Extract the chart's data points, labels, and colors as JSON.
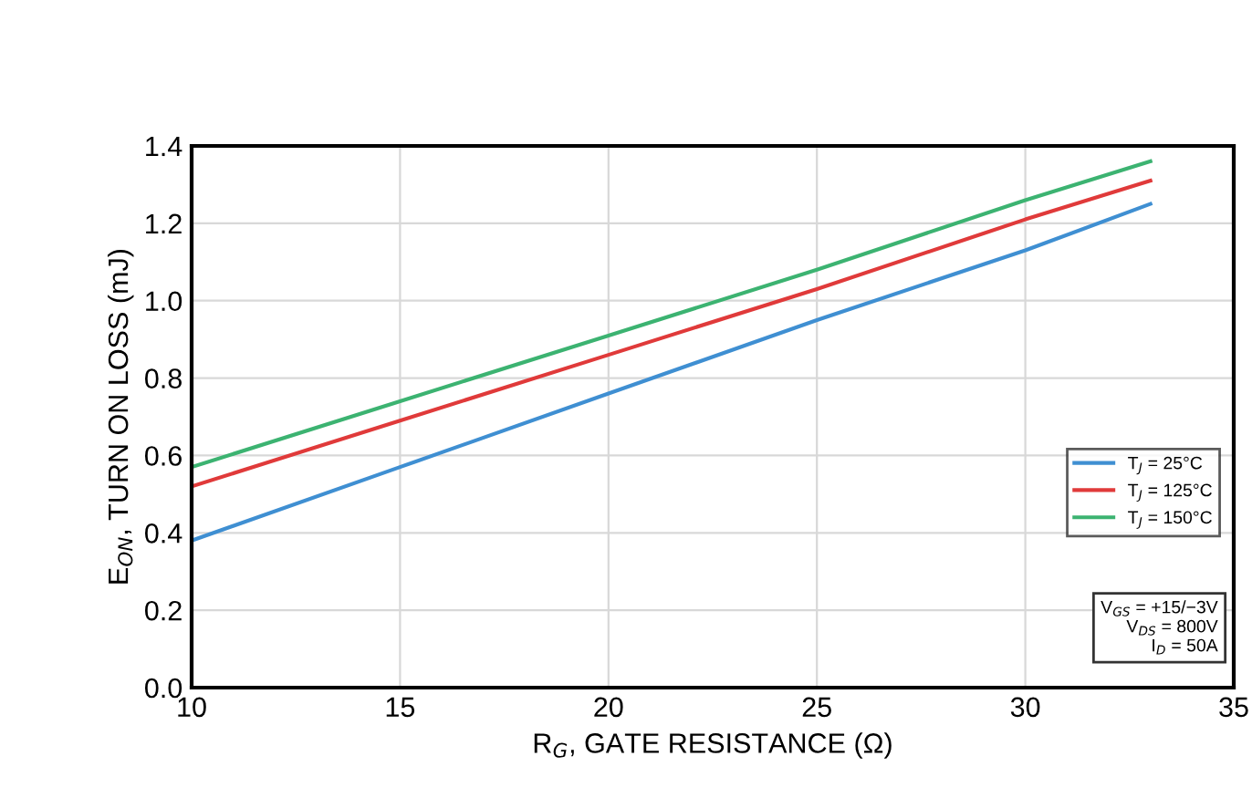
{
  "chart_data": {
    "type": "line",
    "xlabel": "R$_{G}$, GATE RESISTANCE (Ω)",
    "ylabel": "E$_{ON}$, TURN ON LOSS (mJ)",
    "x": [
      10,
      15,
      20,
      25,
      30,
      33
    ],
    "series": [
      {
        "name": "T$_{J}$ = 25°C",
        "color": "#3f8fd2",
        "values": [
          0.38,
          0.57,
          0.76,
          0.95,
          1.13,
          1.25
        ]
      },
      {
        "name": "T$_{J}$ = 125°C",
        "color": "#e03a3a",
        "values": [
          0.52,
          0.69,
          0.86,
          1.03,
          1.21,
          1.31
        ]
      },
      {
        "name": "T$_{J}$ = 150°C",
        "color": "#3cb371",
        "values": [
          0.57,
          0.74,
          0.91,
          1.08,
          1.26,
          1.36
        ]
      }
    ],
    "xlim": [
      10,
      35
    ],
    "xticks": [
      10,
      15,
      20,
      25,
      30,
      35
    ],
    "ylim": [
      0,
      1.4
    ],
    "yticks": [
      {
        "value": 0,
        "label": "0.0"
      },
      0.2,
      0.4,
      0.6,
      0.8,
      {
        "value": 1.0,
        "label": "1.0"
      },
      1.2,
      1.4
    ],
    "annotations": [
      "V$_{GS}$ = +15/−3V\nV$_{DS}$ = 800V\nI$_{D}$ = 50A"
    ],
    "grid": true,
    "legend": "right",
    "marker": "none",
    "line_style": "solid"
  }
}
